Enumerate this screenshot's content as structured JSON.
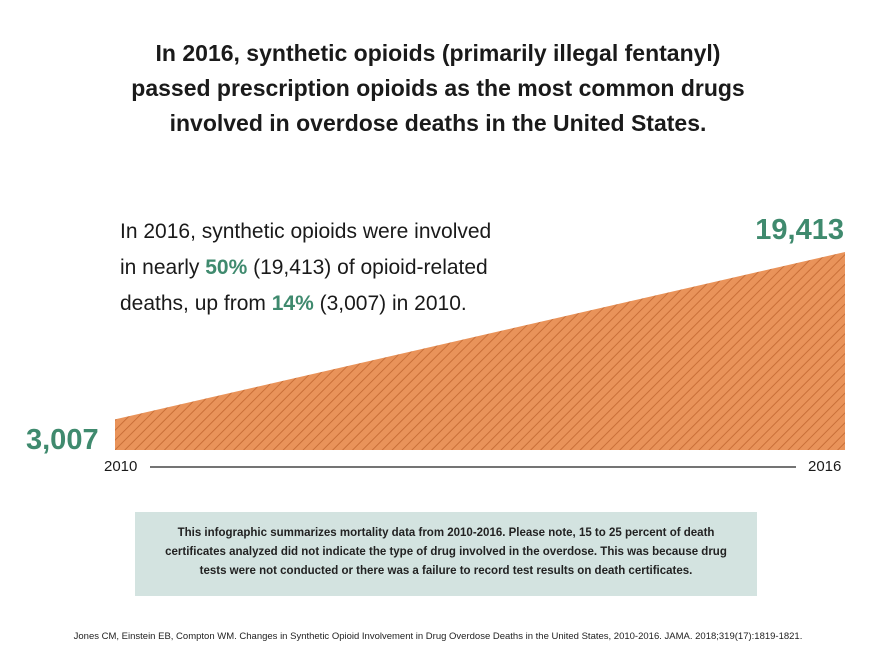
{
  "title": {
    "line1": "In 2016, synthetic opioids (primarily illegal fentanyl)",
    "line2": "passed prescription opioids as the most common drugs",
    "line3": "involved in overdose deaths in the United States."
  },
  "summary": {
    "p1": "In 2016, synthetic opioids were involved",
    "p2a": "in nearly ",
    "p2b": "50%",
    "p2c": " (19,413) of opioid-related",
    "p3a": "deaths, up from ",
    "p3b": "14%",
    "p3c": " (3,007) in 2010."
  },
  "colors": {
    "area_fill": "#e9935a",
    "area_hatch": "#c96f38",
    "accent_green": "#3f8a6e",
    "note_bg": "#d3e3e0"
  },
  "chart_data": {
    "type": "area",
    "x": [
      2010,
      2016
    ],
    "series": [
      {
        "values": [
          3007,
          19413
        ]
      }
    ],
    "value_labels": [
      "3,007",
      "19,413"
    ],
    "tick_labels": [
      "2010",
      "2016"
    ],
    "ylim": [
      0,
      19413
    ],
    "grid": false
  },
  "note": "This infographic summarizes mortality data from 2010-2016. Please note, 15 to 25 percent of death certificates analyzed did not indicate the type of drug involved in the overdose. This was because drug tests were not conducted or there was a failure to record test results on death certificates.",
  "citation": "Jones CM, Einstein EB, Compton WM. Changes in Synthetic Opioid Involvement in Drug Overdose Deaths in the United States, 2010-2016. JAMA. 2018;319(17):1819-1821."
}
